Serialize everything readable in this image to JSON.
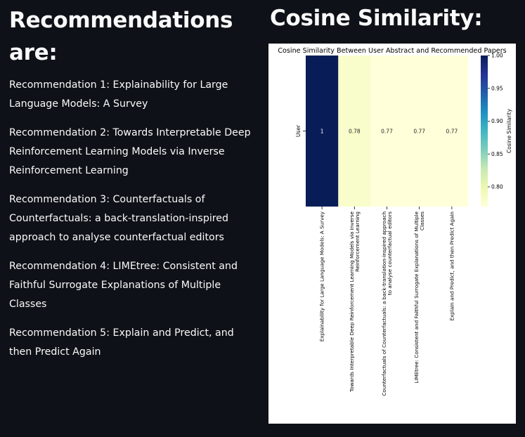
{
  "left_heading": "Recommendations are:",
  "recommendations": [
    "Recommendation 1: Explainability for Large Language Models: A Survey",
    "Recommendation 2: Towards Interpretable Deep Reinforcement Learning Models via Inverse Reinforcement Learning",
    "Recommendation 3: Counterfactuals of Counterfactuals: a back-translation-inspired approach to analyse counterfactual editors",
    "Recommendation 4: LIMEtree: Consistent and Faithful Surrogate Explanations of Multiple Classes",
    "Recommendation 5: Explain and Predict, and then Predict Again"
  ],
  "right_heading": "Cosine Similarity:",
  "colors": {
    "background": "#0e1117",
    "text": "#fafafa",
    "cmap_low": "#ffffd9",
    "cmap_high": "#081d58"
  },
  "chart_data": {
    "type": "heatmap",
    "title": "Cosine Similarity Between User Abstract and Recommended Papers",
    "row_labels": [
      "User"
    ],
    "column_labels": [
      [
        "Explainability for Large Language Models: A Survey"
      ],
      [
        "Towards Interpretable Deep Reinforcement Learning Models via Inverse",
        "Reinforcement Learning"
      ],
      [
        "Counterfactuals of Counterfactuals: a back-translation-inspired approach",
        "to analyse counterfactual editors"
      ],
      [
        "LIMEtree: Consistent and Faithful Surrogate Explanations of Multiple",
        "Classes"
      ],
      [
        "Explain and Predict, and then Predict Again"
      ]
    ],
    "values": [
      [
        1.0,
        0.78,
        0.77,
        0.77,
        0.77
      ]
    ],
    "value_labels": [
      "1",
      "0.78",
      "0.77",
      "0.77",
      "0.77"
    ],
    "colorbar": {
      "label": "Cosine Similarity",
      "range": [
        0.77,
        1.0
      ],
      "ticks": [
        1.0,
        0.95,
        0.9,
        0.85,
        0.8
      ],
      "tick_labels": [
        "1.00",
        "0.95",
        "0.90",
        "0.85",
        "0.80"
      ]
    },
    "colormap": "YlGnBu"
  }
}
